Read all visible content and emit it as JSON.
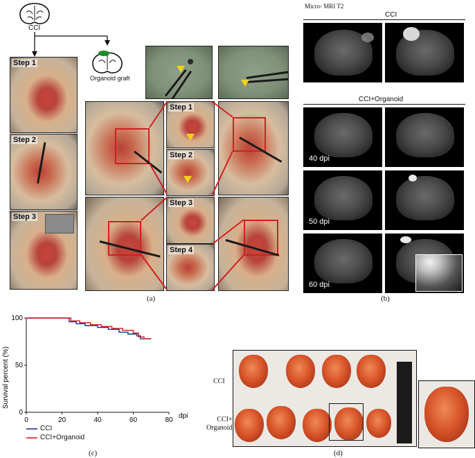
{
  "panel_a": {
    "top_label": "CCI",
    "graft_label": "Organoid graft",
    "left_steps": [
      "Step 1",
      "Step 2",
      "Step 3"
    ],
    "middle_steps": [
      "Step 1",
      "Step 2",
      "Step 3",
      "Step 4"
    ],
    "caption": "(a)"
  },
  "panel_b": {
    "title": "Micro- MRI T2",
    "cci_label": "CCI",
    "organoid_label": "CCI+Organoid",
    "dpi_labels": [
      "40 dpi",
      "50 dpi",
      "60 dpi"
    ],
    "caption": "(b)"
  },
  "panel_c": {
    "caption": "(c)",
    "legend": [
      "CCI",
      "CCI+Organoid"
    ],
    "legend_colors": [
      "#1f2f8f",
      "#d11f1f"
    ]
  },
  "panel_d": {
    "row_labels": [
      "CCI",
      "CCI+\nOrganoid"
    ],
    "caption": "(d)"
  },
  "chart_data": {
    "type": "line",
    "xlabel": "dpi",
    "ylabel": "Survival percent (%)",
    "xlim": [
      0,
      80
    ],
    "ylim": [
      0,
      100
    ],
    "xticks": [
      0,
      20,
      40,
      60,
      80
    ],
    "yticks": [
      0,
      50,
      100
    ],
    "series": [
      {
        "name": "CCI",
        "color": "#1f2f8f",
        "x": [
          0,
          22,
          24,
          28,
          33,
          40,
          46,
          52,
          57,
          62,
          64,
          70
        ],
        "y": [
          100,
          100,
          96,
          94,
          92,
          90,
          88,
          85,
          83,
          81,
          78,
          78
        ]
      },
      {
        "name": "CCI+Organoid",
        "color": "#d11f1f",
        "x": [
          0,
          22,
          25,
          30,
          36,
          42,
          48,
          54,
          60,
          63,
          66,
          70
        ],
        "y": [
          100,
          100,
          97,
          95,
          93,
          91,
          89,
          87,
          84,
          80,
          78,
          78
        ]
      }
    ]
  }
}
